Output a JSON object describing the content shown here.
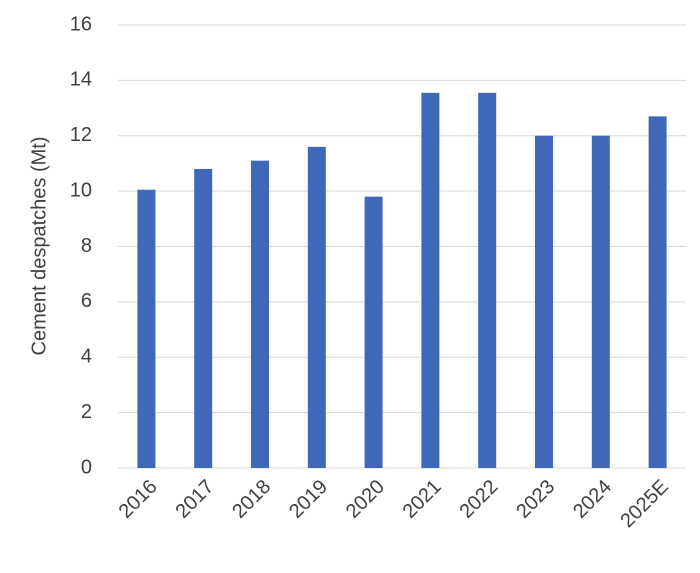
{
  "chart_data": {
    "type": "bar",
    "y_label": "Cement despatches (Mt)",
    "categories": [
      "2016",
      "2017",
      "2018",
      "2019",
      "2020",
      "2021",
      "2022",
      "2023",
      "2024",
      "2025E"
    ],
    "values": [
      10.05,
      10.8,
      11.1,
      11.6,
      9.8,
      13.55,
      13.55,
      12.0,
      12.0,
      12.7
    ],
    "color": "#4068b8",
    "ylim": [
      0,
      16
    ],
    "yticks": [
      0,
      2,
      4,
      6,
      8,
      10,
      12,
      14,
      16
    ],
    "grid": true
  }
}
